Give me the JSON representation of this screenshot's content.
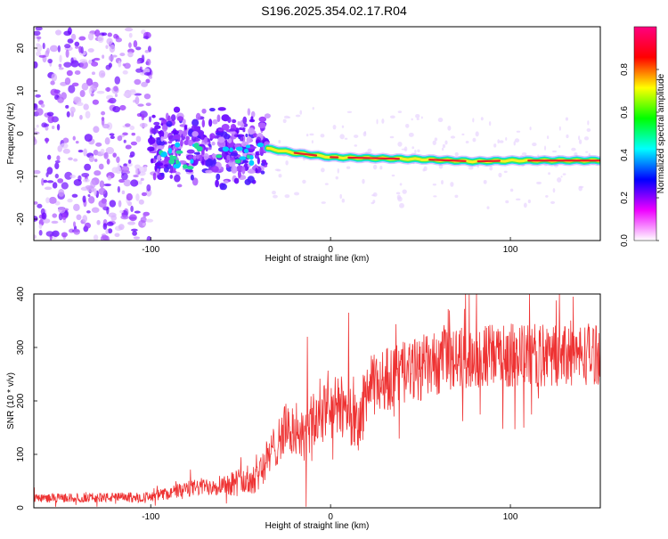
{
  "title": "S196.2025.354.02.17.R04",
  "colors": {
    "snr_line": "#ee3333",
    "axis": "#000000",
    "spectrogram_band_core": "#e8202a",
    "spectrogram_scatter": "#7a1fff"
  },
  "chart_data": [
    {
      "type": "heatmap",
      "title": "",
      "xlabel": "Height of straight line (km)",
      "ylabel": "Frequency (Hz)",
      "xlim": [
        -165,
        150
      ],
      "ylim": [
        -25,
        25
      ],
      "x_ticks": [
        -100,
        0,
        100
      ],
      "y_ticks": [
        -20,
        -10,
        0,
        10,
        20
      ],
      "colorbar": {
        "label": "Normalized spectral amplitude",
        "range": [
          0.0,
          1.0
        ],
        "ticks": [
          "0.0",
          "0.2",
          "0.4",
          "0.6",
          "0.8"
        ],
        "colormap": [
          "#ffffff",
          "#ee00ff",
          "#0000ff",
          "#00ffff",
          "#00ff00",
          "#ffff00",
          "#ff0000",
          "#ff0080"
        ]
      },
      "band": {
        "description": "narrow frequency track",
        "x_start": -35,
        "x_end": 150,
        "freq_track": [
          {
            "x": -35,
            "f": -3.5
          },
          {
            "x": -20,
            "f": -4.5
          },
          {
            "x": 0,
            "f": -5.5
          },
          {
            "x": 20,
            "f": -5.7
          },
          {
            "x": 50,
            "f": -6.0
          },
          {
            "x": 80,
            "f": -6.5
          },
          {
            "x": 100,
            "f": -6.3
          },
          {
            "x": 150,
            "f": -6.3
          }
        ]
      },
      "scatter_regions": [
        {
          "x_range": [
            -165,
            -100
          ],
          "f_range": [
            -25,
            25
          ],
          "density": "sparse"
        },
        {
          "x_range": [
            -100,
            -35
          ],
          "f_range": [
            -12,
            8
          ],
          "density": "dense"
        }
      ]
    },
    {
      "type": "line",
      "title": "",
      "xlabel": "Height of straight line (km)",
      "ylabel": "SNR (10 * v/v)",
      "xlim": [
        -165,
        150
      ],
      "ylim": [
        0,
        400
      ],
      "x_ticks": [
        -100,
        0,
        100
      ],
      "y_ticks": [
        0,
        100,
        200,
        300,
        400
      ],
      "series": [
        {
          "name": "SNR",
          "trend": [
            {
              "x": -165,
              "y": 18
            },
            {
              "x": -100,
              "y": 20
            },
            {
              "x": -80,
              "y": 35
            },
            {
              "x": -60,
              "y": 45
            },
            {
              "x": -45,
              "y": 50
            },
            {
              "x": -35,
              "y": 90
            },
            {
              "x": -25,
              "y": 150
            },
            {
              "x": -15,
              "y": 130
            },
            {
              "x": -10,
              "y": 160
            },
            {
              "x": 0,
              "y": 185
            },
            {
              "x": 10,
              "y": 190
            },
            {
              "x": 15,
              "y": 140
            },
            {
              "x": 20,
              "y": 220
            },
            {
              "x": 30,
              "y": 240
            },
            {
              "x": 50,
              "y": 260
            },
            {
              "x": 70,
              "y": 280
            },
            {
              "x": 100,
              "y": 285
            },
            {
              "x": 130,
              "y": 285
            },
            {
              "x": 150,
              "y": 290
            }
          ],
          "noise_amplitude": [
            {
              "x": -165,
              "a": 8
            },
            {
              "x": -100,
              "a": 10
            },
            {
              "x": -60,
              "a": 20
            },
            {
              "x": -35,
              "a": 40
            },
            {
              "x": 0,
              "a": 60
            },
            {
              "x": 50,
              "a": 60
            },
            {
              "x": 150,
              "a": 60
            }
          ],
          "spikes": [
            {
              "x": -13,
              "y": 320
            },
            {
              "x": 10,
              "y": 365
            },
            {
              "x": 75,
              "y": 400
            },
            {
              "x": 135,
              "y": 395
            }
          ]
        }
      ]
    }
  ]
}
